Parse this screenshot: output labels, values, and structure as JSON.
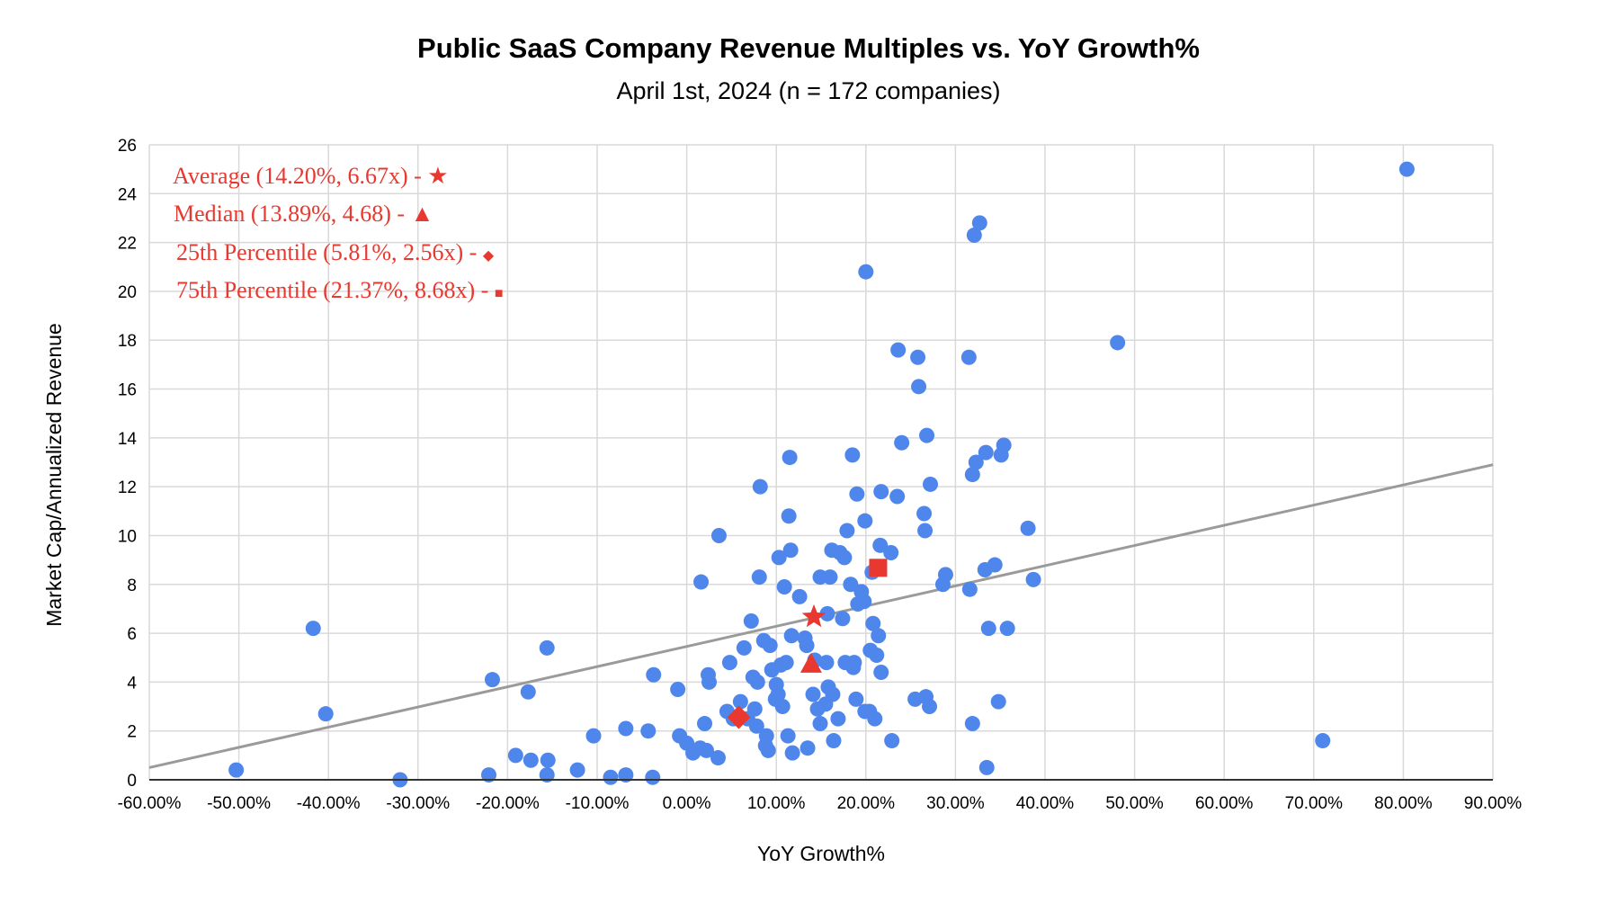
{
  "chart_data": {
    "type": "scatter",
    "title": "Public SaaS Company Revenue Multiples vs. YoY Growth%",
    "subtitle": "April 1st, 2024 (n = 172 companies)",
    "xlabel": "YoY Growth%",
    "ylabel": "Market Cap/Annualized Revenue",
    "xlim": [
      -60,
      90
    ],
    "ylim": [
      0,
      26
    ],
    "grid": true,
    "x_ticks": [
      "-60.00%",
      "-50.00%",
      "-40.00%",
      "-30.00%",
      "-20.00%",
      "-10.00%",
      "0.00%",
      "10.00%",
      "20.00%",
      "30.00%",
      "40.00%",
      "50.00%",
      "60.00%",
      "70.00%",
      "80.00%",
      "90.00%"
    ],
    "x_tick_values": [
      -60,
      -50,
      -40,
      -30,
      -20,
      -10,
      0,
      10,
      20,
      30,
      40,
      50,
      60,
      70,
      80,
      90
    ],
    "y_ticks": [
      "0",
      "2",
      "4",
      "6",
      "8",
      "10",
      "12",
      "14",
      "16",
      "18",
      "20",
      "22",
      "24",
      "26"
    ],
    "y_tick_values": [
      0,
      2,
      4,
      6,
      8,
      10,
      12,
      14,
      16,
      18,
      20,
      22,
      24,
      26
    ],
    "colors": {
      "points": "#4f86ec",
      "highlight": "#e8382f",
      "trendline": "#9a9a9a",
      "grid": "#d9d9d9"
    },
    "trendline": {
      "x": [
        -60,
        90
      ],
      "y": [
        0.5,
        12.9
      ]
    },
    "series": [
      {
        "name": "Companies",
        "points": [
          [
            -50.3,
            0.4
          ],
          [
            -41.7,
            6.2
          ],
          [
            -40.3,
            2.7
          ],
          [
            -32.0,
            0.0
          ],
          [
            -22.1,
            0.2
          ],
          [
            -21.7,
            4.1
          ],
          [
            -19.1,
            1.0
          ],
          [
            -17.7,
            3.6
          ],
          [
            -17.4,
            0.8
          ],
          [
            -15.6,
            5.4
          ],
          [
            -15.5,
            0.8
          ],
          [
            -15.6,
            0.2
          ],
          [
            -12.2,
            0.4
          ],
          [
            -10.4,
            1.8
          ],
          [
            -8.5,
            0.1
          ],
          [
            -6.8,
            2.1
          ],
          [
            -6.8,
            0.2
          ],
          [
            -4.3,
            2.0
          ],
          [
            -3.8,
            0.1
          ],
          [
            -3.7,
            4.3
          ],
          [
            -1.0,
            3.7
          ],
          [
            -0.8,
            1.8
          ],
          [
            0.0,
            1.5
          ],
          [
            0.7,
            1.1
          ],
          [
            1.5,
            1.3
          ],
          [
            1.6,
            8.1
          ],
          [
            2.0,
            2.3
          ],
          [
            2.2,
            1.2
          ],
          [
            2.4,
            4.3
          ],
          [
            2.5,
            4.0
          ],
          [
            3.5,
            0.9
          ],
          [
            3.6,
            10.0
          ],
          [
            4.5,
            2.8
          ],
          [
            4.8,
            4.8
          ],
          [
            5.2,
            2.5
          ],
          [
            6.0,
            3.2
          ],
          [
            6.4,
            5.4
          ],
          [
            6.8,
            2.5
          ],
          [
            7.2,
            6.5
          ],
          [
            7.4,
            4.2
          ],
          [
            7.6,
            2.9
          ],
          [
            7.8,
            2.2
          ],
          [
            7.9,
            4.0
          ],
          [
            8.1,
            8.3
          ],
          [
            8.2,
            12.0
          ],
          [
            8.6,
            5.7
          ],
          [
            8.8,
            1.4
          ],
          [
            8.9,
            1.8
          ],
          [
            9.1,
            1.2
          ],
          [
            9.3,
            5.5
          ],
          [
            9.5,
            4.5
          ],
          [
            9.9,
            3.3
          ],
          [
            10.0,
            3.9
          ],
          [
            10.2,
            3.5
          ],
          [
            10.3,
            9.1
          ],
          [
            10.5,
            4.7
          ],
          [
            10.7,
            3.0
          ],
          [
            10.9,
            7.9
          ],
          [
            11.1,
            4.8
          ],
          [
            11.3,
            1.8
          ],
          [
            11.4,
            10.8
          ],
          [
            11.5,
            13.2
          ],
          [
            11.6,
            9.4
          ],
          [
            11.7,
            5.9
          ],
          [
            11.8,
            1.1
          ],
          [
            12.6,
            7.5
          ],
          [
            13.2,
            5.8
          ],
          [
            13.4,
            5.5
          ],
          [
            13.5,
            1.3
          ],
          [
            14.1,
            3.5
          ],
          [
            14.3,
            4.9
          ],
          [
            14.6,
            2.9
          ],
          [
            14.9,
            8.3
          ],
          [
            14.9,
            2.3
          ],
          [
            15.5,
            3.1
          ],
          [
            15.6,
            4.8
          ],
          [
            15.7,
            6.8
          ],
          [
            15.8,
            3.8
          ],
          [
            16.0,
            8.3
          ],
          [
            16.2,
            9.4
          ],
          [
            16.3,
            3.5
          ],
          [
            16.4,
            1.6
          ],
          [
            16.9,
            2.5
          ],
          [
            17.1,
            9.3
          ],
          [
            17.4,
            6.6
          ],
          [
            17.6,
            9.1
          ],
          [
            17.7,
            4.8
          ],
          [
            17.9,
            10.2
          ],
          [
            18.3,
            8.0
          ],
          [
            18.5,
            13.3
          ],
          [
            18.6,
            4.6
          ],
          [
            18.7,
            4.8
          ],
          [
            18.9,
            3.3
          ],
          [
            19.0,
            11.7
          ],
          [
            19.1,
            7.2
          ],
          [
            19.5,
            7.7
          ],
          [
            19.8,
            7.3
          ],
          [
            19.9,
            10.6
          ],
          [
            19.9,
            2.8
          ],
          [
            20.0,
            20.8
          ],
          [
            20.4,
            2.8
          ],
          [
            20.5,
            5.3
          ],
          [
            20.7,
            8.5
          ],
          [
            20.8,
            6.4
          ],
          [
            21.0,
            2.5
          ],
          [
            21.2,
            5.1
          ],
          [
            21.4,
            5.9
          ],
          [
            21.6,
            9.6
          ],
          [
            21.7,
            11.8
          ],
          [
            21.7,
            4.4
          ],
          [
            22.8,
            9.3
          ],
          [
            22.9,
            1.6
          ],
          [
            23.5,
            11.6
          ],
          [
            23.6,
            17.6
          ],
          [
            24.0,
            13.8
          ],
          [
            25.5,
            3.3
          ],
          [
            25.8,
            17.3
          ],
          [
            25.9,
            16.1
          ],
          [
            26.5,
            10.9
          ],
          [
            26.6,
            10.2
          ],
          [
            26.7,
            3.4
          ],
          [
            26.8,
            14.1
          ],
          [
            27.1,
            3.0
          ],
          [
            27.2,
            12.1
          ],
          [
            28.6,
            8.0
          ],
          [
            28.9,
            8.4
          ],
          [
            31.5,
            17.3
          ],
          [
            31.6,
            7.8
          ],
          [
            31.9,
            2.3
          ],
          [
            31.9,
            12.5
          ],
          [
            32.1,
            22.3
          ],
          [
            32.3,
            13.0
          ],
          [
            32.7,
            22.8
          ],
          [
            33.3,
            8.6
          ],
          [
            33.4,
            13.4
          ],
          [
            33.5,
            0.5
          ],
          [
            33.7,
            6.2
          ],
          [
            34.4,
            8.8
          ],
          [
            34.8,
            3.2
          ],
          [
            35.1,
            13.3
          ],
          [
            35.4,
            13.7
          ],
          [
            35.8,
            6.2
          ],
          [
            38.1,
            10.3
          ],
          [
            38.7,
            8.2
          ],
          [
            48.1,
            17.9
          ],
          [
            71.0,
            1.6
          ],
          [
            80.4,
            25.0
          ]
        ]
      }
    ],
    "highlights": [
      {
        "name": "Average",
        "shape": "star",
        "x": 14.2,
        "y": 6.67,
        "label": "Average (14.20%, 6.67x) - ",
        "symbol": "★"
      },
      {
        "name": "Median",
        "shape": "triangle",
        "x": 13.89,
        "y": 4.68,
        "label": "Median (13.89%, 4.68) - ",
        "symbol": "▲"
      },
      {
        "name": "25th Percentile",
        "shape": "diamond",
        "x": 5.81,
        "y": 2.56,
        "label": "25th Percentile (5.81%, 2.56x) - ",
        "symbol": "◆"
      },
      {
        "name": "75th Percentile",
        "shape": "square",
        "x": 21.37,
        "y": 8.68,
        "label": "75th Percentile (21.37%, 8.68x) - ",
        "symbol": "■"
      }
    ]
  }
}
